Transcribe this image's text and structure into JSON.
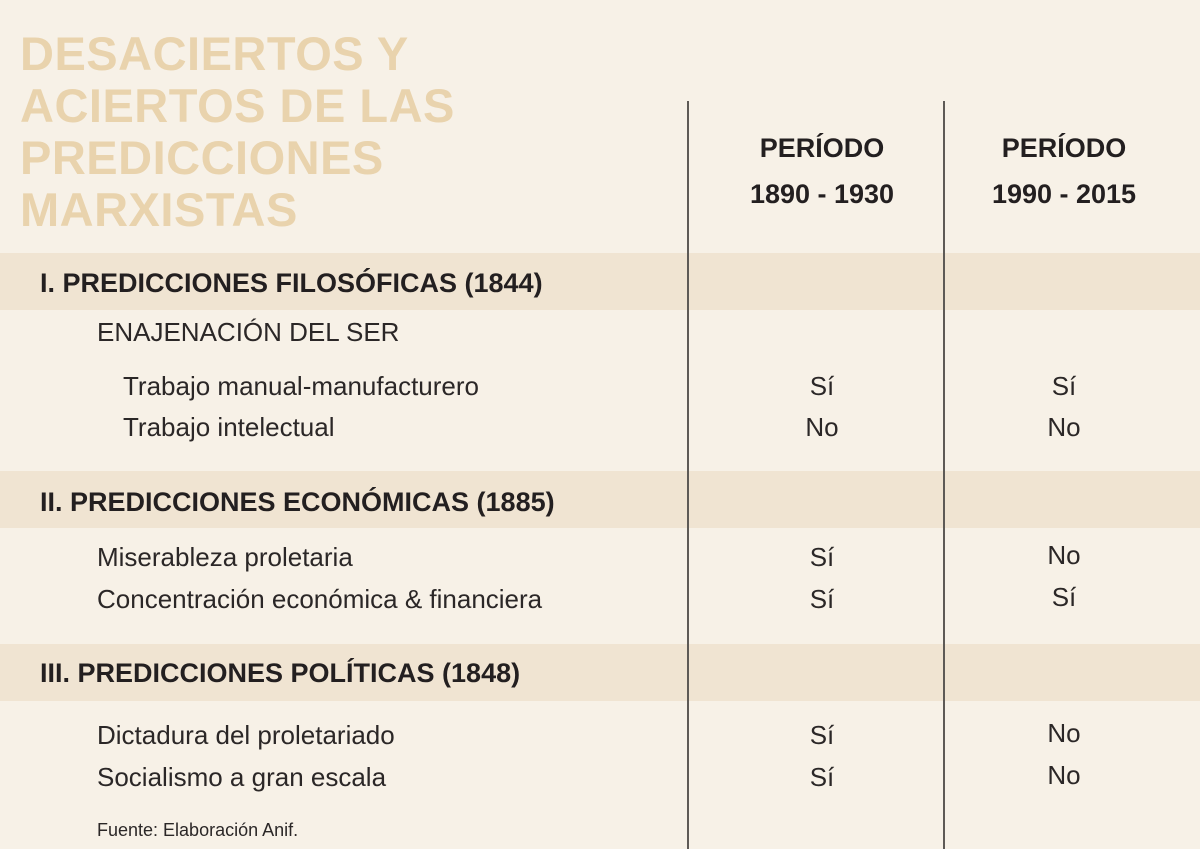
{
  "title_lines": [
    "DESACIERTOS Y",
    "ACIERTOS DE LAS",
    "PREDICCIONES",
    "MARXISTAS"
  ],
  "columns": [
    {
      "label": "PERÍODO",
      "range": "1890 - 1930"
    },
    {
      "label": "PERÍODO",
      "range": "1990 - 2015"
    }
  ],
  "sections": [
    {
      "title": "I.  PREDICCIONES FILOSÓFICAS (1844)",
      "subheading": "ENAJENACIÓN DEL SER",
      "rows": [
        {
          "label": "Trabajo manual-manufacturero",
          "v1": "Sí",
          "v2": "Sí"
        },
        {
          "label": "Trabajo intelectual",
          "v1": "No",
          "v2": "No"
        }
      ]
    },
    {
      "title": "II.  PREDICCIONES ECONÓMICAS (1885)",
      "rows": [
        {
          "label": "Miserableza proletaria",
          "v1": "Sí",
          "v2": "No"
        },
        {
          "label": "Concentración económica & financiera",
          "v1": "Sí",
          "v2": "Sí"
        }
      ]
    },
    {
      "title": "III.  PREDICCIONES POLÍTICAS (1848)",
      "rows": [
        {
          "label": "Dictadura del proletariado",
          "v1": "Sí",
          "v2": "No"
        },
        {
          "label": "Socialismo a gran escala",
          "v1": "Sí",
          "v2": "No"
        }
      ]
    }
  ],
  "source": "Fuente: Elaboración Anif.",
  "colors": {
    "background": "#f7f1e7",
    "band": "#f0e4d2",
    "title": "#e9d3ad",
    "text": "#231f20",
    "divider": "#5e5a56"
  }
}
